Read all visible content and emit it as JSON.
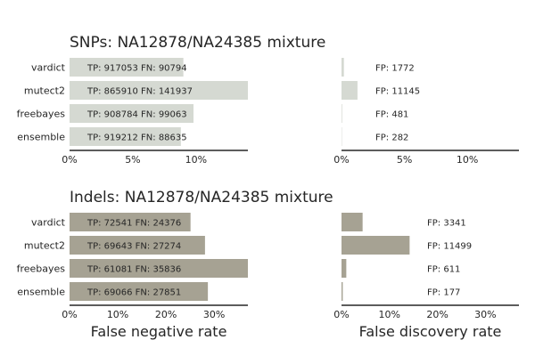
{
  "chart_data": [
    {
      "type": "bar",
      "orientation": "horizontal",
      "panel": "snps-fnr",
      "title": "SNPs: NA12878/NA24385 mixture",
      "xlabel": "",
      "categories": [
        "vardict",
        "mutect2",
        "freebayes",
        "ensemble"
      ],
      "values": [
        9.0,
        14.1,
        9.8,
        8.8
      ],
      "value_unit": "% false negative rate",
      "bar_labels": [
        "TP: 917053 FN: 90794",
        "TP: 865910 FN: 141937",
        "TP: 908784 FN: 99063",
        "TP: 919212 FN: 88635"
      ],
      "xlim": [
        0,
        14.1
      ],
      "xticks": [
        0,
        5,
        10
      ],
      "xtick_labels": [
        "0%",
        "5%",
        "10%"
      ],
      "color": "#d5d9d2"
    },
    {
      "type": "bar",
      "orientation": "horizontal",
      "panel": "snps-fdr",
      "title": "",
      "xlabel": "",
      "categories": [
        "vardict",
        "mutect2",
        "freebayes",
        "ensemble"
      ],
      "values": [
        0.19,
        1.27,
        0.05,
        0.03
      ],
      "value_unit": "% false discovery rate",
      "bar_labels": [
        "FP: 1772",
        "FP: 11145",
        "FP: 481",
        "FP: 282"
      ],
      "xlim": [
        0,
        14.1
      ],
      "xticks": [
        0,
        5,
        10
      ],
      "xtick_labels": [
        "0%",
        "5%",
        "10%"
      ],
      "color": "#d5d9d2"
    },
    {
      "type": "bar",
      "orientation": "horizontal",
      "panel": "indels-fnr",
      "title": "Indels: NA12878/NA24385 mixture",
      "xlabel": "False negative rate",
      "categories": [
        "vardict",
        "mutect2",
        "freebayes",
        "ensemble"
      ],
      "values": [
        25.1,
        28.1,
        37.0,
        28.7
      ],
      "value_unit": "% false negative rate",
      "bar_labels": [
        "TP: 72541 FN: 24376",
        "TP: 69643 FN: 27274",
        "TP: 61081 FN: 35836",
        "TP: 69066 FN: 27851"
      ],
      "xlim": [
        0,
        37.0
      ],
      "xticks": [
        0,
        10,
        20,
        30
      ],
      "xtick_labels": [
        "0%",
        "10%",
        "20%",
        "30%"
      ],
      "color": "#a6a293"
    },
    {
      "type": "bar",
      "orientation": "horizontal",
      "panel": "indels-fdr",
      "title": "",
      "xlabel": "False discovery rate",
      "categories": [
        "vardict",
        "mutect2",
        "freebayes",
        "ensemble"
      ],
      "values": [
        4.4,
        14.2,
        1.0,
        0.26
      ],
      "value_unit": "% false discovery rate",
      "bar_labels": [
        "FP: 3341",
        "FP: 11499",
        "FP: 611",
        "FP: 177"
      ],
      "xlim": [
        0,
        37.0
      ],
      "xticks": [
        0,
        10,
        20,
        30
      ],
      "xtick_labels": [
        "0%",
        "10%",
        "20%",
        "30%"
      ],
      "color": "#a6a293"
    }
  ]
}
